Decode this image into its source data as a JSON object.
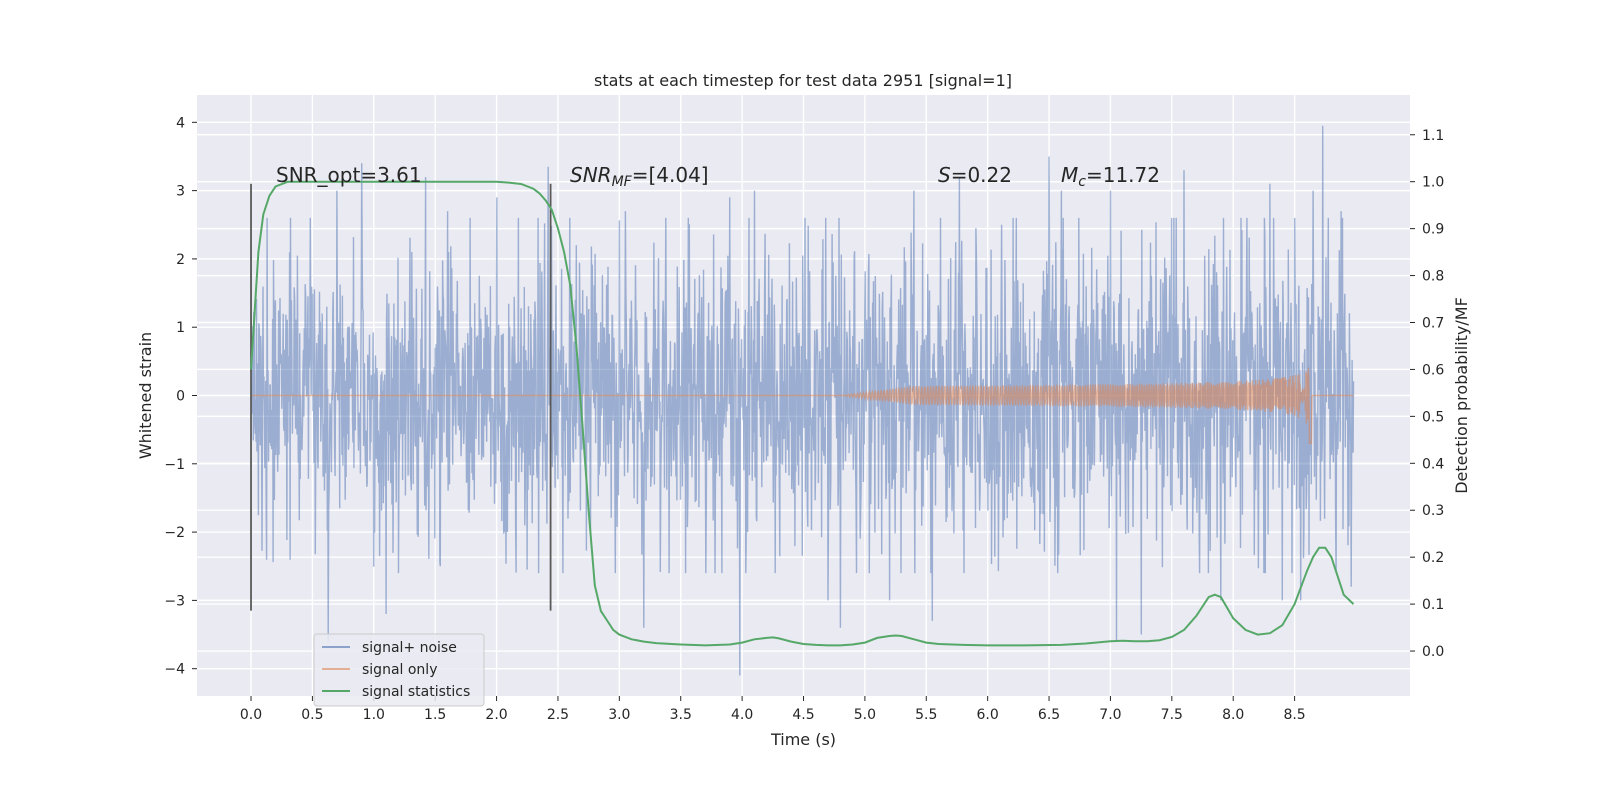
{
  "chart_data": {
    "type": "line",
    "title": "stats at each timestep for test data 2951 [signal=1]",
    "xlabel": "Time (s)",
    "ylabel": "Whitened strain",
    "y2label": "Detection probability/MF",
    "xlim": [
      -0.44,
      9.44
    ],
    "ylim": [
      -4.4,
      4.4
    ],
    "y2lim": [
      -0.0958,
      1.1847
    ],
    "grid": true,
    "x_ticks": [
      "0.0",
      "0.5",
      "1.0",
      "1.5",
      "2.0",
      "2.5",
      "3.0",
      "3.5",
      "4.0",
      "4.5",
      "5.0",
      "5.5",
      "6.0",
      "6.5",
      "7.0",
      "7.5",
      "8.0",
      "8.5"
    ],
    "y_ticks": [
      "4",
      "3",
      "2",
      "1",
      "0",
      "−1",
      "−2",
      "−3",
      "−4"
    ],
    "y2_ticks": [
      "1.1",
      "1.0",
      "0.9",
      "0.8",
      "0.7",
      "0.6",
      "0.5",
      "0.4",
      "0.3",
      "0.2",
      "0.1",
      "0.0"
    ],
    "annotations": {
      "snr_opt": "SNR_opt=3.61",
      "snr_mf_main": "SNR",
      "snr_mf_sub": "MF",
      "snr_mf_rest": "=[4.04]",
      "s_main": "S",
      "s_rest": "=0.22",
      "mc_main": "M",
      "mc_sub": "c",
      "mc_rest": "=11.72"
    },
    "vlines": [
      0.0,
      2.44
    ],
    "series": [
      {
        "name": "signal+ noise",
        "color": "#4c72b0",
        "t_range": [
          0.0,
          8.98
        ],
        "envelope_p50": 1.2,
        "envelope_p90": 2.0,
        "peaks": [
          [
            0.0,
            2.2
          ],
          [
            0.32,
            2.6
          ],
          [
            0.63,
            -3.6
          ],
          [
            0.7,
            3.0
          ],
          [
            0.9,
            3.4
          ],
          [
            1.1,
            -3.2
          ],
          [
            1.42,
            3.2
          ],
          [
            1.6,
            2.7
          ],
          [
            2.0,
            2.9
          ],
          [
            2.42,
            3.35
          ],
          [
            3.05,
            2.7
          ],
          [
            3.2,
            -3.4
          ],
          [
            3.9,
            2.9
          ],
          [
            3.98,
            -4.1
          ],
          [
            4.1,
            3.0
          ],
          [
            4.7,
            -3.0
          ],
          [
            4.8,
            -3.4
          ],
          [
            5.2,
            -3.0
          ],
          [
            5.4,
            3.0
          ],
          [
            5.55,
            -3.3
          ],
          [
            5.77,
            3.2
          ],
          [
            6.5,
            3.5
          ],
          [
            6.6,
            3.0
          ],
          [
            7.0,
            3.0
          ],
          [
            7.05,
            -3.6
          ],
          [
            7.25,
            -3.5
          ],
          [
            7.6,
            3.3
          ],
          [
            7.9,
            -3.0
          ],
          [
            8.3,
            3.1
          ],
          [
            8.4,
            -3.0
          ],
          [
            8.55,
            -3.0
          ],
          [
            8.65,
            3.0
          ],
          [
            8.73,
            3.95
          ],
          [
            8.88,
            2.7
          ],
          [
            8.96,
            -2.8
          ]
        ]
      },
      {
        "name": "signal only",
        "color": "#dd8452",
        "onset": 4.8,
        "merger": 8.62,
        "peak_amp": 0.5,
        "end_value": -0.7
      },
      {
        "name": "signal statistics",
        "color": "#55a868",
        "axis": "y2",
        "x": [
          0.0,
          0.06,
          0.1,
          0.15,
          0.2,
          0.3,
          0.5,
          1.0,
          1.5,
          2.0,
          2.1,
          2.2,
          2.3,
          2.35,
          2.4,
          2.45,
          2.5,
          2.55,
          2.6,
          2.65,
          2.7,
          2.75,
          2.8,
          2.85,
          2.9,
          2.95,
          3.0,
          3.1,
          3.2,
          3.3,
          3.5,
          3.7,
          3.9,
          4.0,
          4.1,
          4.2,
          4.25,
          4.3,
          4.4,
          4.5,
          4.6,
          4.7,
          4.8,
          4.9,
          5.0,
          5.1,
          5.2,
          5.25,
          5.3,
          5.4,
          5.5,
          5.6,
          5.8,
          6.0,
          6.3,
          6.6,
          6.8,
          7.0,
          7.1,
          7.2,
          7.3,
          7.4,
          7.5,
          7.6,
          7.7,
          7.8,
          7.85,
          7.9,
          8.0,
          8.1,
          8.2,
          8.3,
          8.4,
          8.5,
          8.6,
          8.65,
          8.7,
          8.75,
          8.8,
          8.9,
          8.98
        ],
        "y": [
          0.6,
          0.85,
          0.93,
          0.97,
          0.99,
          1.0,
          1.0,
          1.0,
          1.0,
          1.0,
          0.998,
          0.995,
          0.985,
          0.975,
          0.96,
          0.94,
          0.9,
          0.85,
          0.78,
          0.65,
          0.48,
          0.3,
          0.14,
          0.085,
          0.065,
          0.045,
          0.035,
          0.025,
          0.02,
          0.017,
          0.014,
          0.012,
          0.014,
          0.018,
          0.025,
          0.028,
          0.029,
          0.027,
          0.02,
          0.015,
          0.013,
          0.012,
          0.012,
          0.014,
          0.018,
          0.028,
          0.032,
          0.033,
          0.032,
          0.025,
          0.018,
          0.015,
          0.013,
          0.012,
          0.012,
          0.013,
          0.016,
          0.021,
          0.022,
          0.021,
          0.021,
          0.023,
          0.03,
          0.045,
          0.075,
          0.115,
          0.12,
          0.115,
          0.07,
          0.045,
          0.035,
          0.038,
          0.055,
          0.1,
          0.17,
          0.2,
          0.22,
          0.22,
          0.2,
          0.12,
          0.1
        ]
      }
    ],
    "legend": {
      "position": "lower-left"
    }
  }
}
